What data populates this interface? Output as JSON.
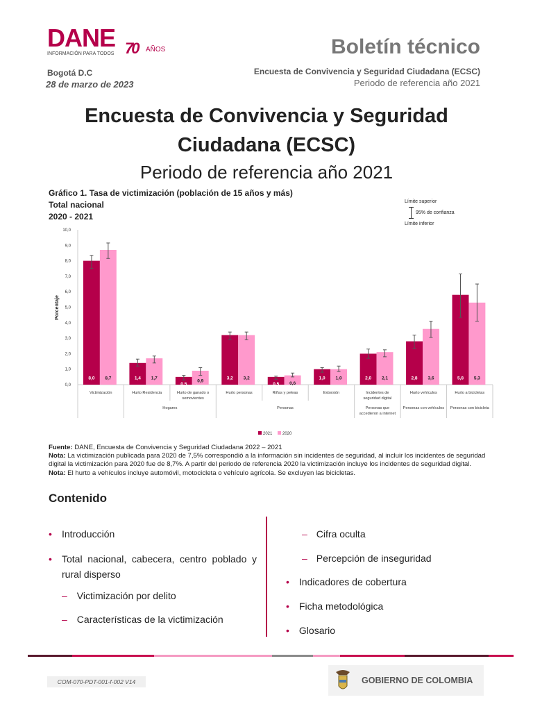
{
  "header": {
    "logo_text": "DANE",
    "logo_tagline": "INFORMACIÓN PARA TODOS",
    "logo_anniversary": "70",
    "logo_anos": "AÑOS",
    "city": "Bogotá D.C",
    "date": "28 de marzo de 2023",
    "doc_type": "Boletín técnico",
    "survey": "Encuesta de Convivencia y Seguridad Ciudadana (ECSC)",
    "period": "Periodo de referencia año 2021"
  },
  "title_line1": "Encuesta de Convivencia y Seguridad",
  "title_line2": "Ciudadana (ECSC)",
  "subtitle": "Periodo de referencia año 2021",
  "chart_heading": [
    "Gráfico 1. Tasa de victimización (población de 15 años y más)",
    "Total nacional",
    "2020 - 2021"
  ],
  "ci_legend": {
    "upper": "Límite superior",
    "label": "95% de confianza",
    "lower": "Límite inferior"
  },
  "chart_data": {
    "type": "bar",
    "ylabel": "Porcentaje",
    "ylim": [
      0,
      10
    ],
    "yticks": [
      "0,0",
      "1,0",
      "2,0",
      "3,0",
      "4,0",
      "5,0",
      "6,0",
      "7,0",
      "8,0",
      "9,0",
      "10,0"
    ],
    "categories": [
      "Victimización",
      "Hurto Residencia",
      "Hurto de ganado o semovientes",
      "Hurto personas",
      "Riñas y peleas",
      "Extorsión",
      "Incidentes de seguridad digital",
      "Hurto vehículos",
      "Hurto a bicicletas"
    ],
    "groups": [
      {
        "label": "",
        "span": 1
      },
      {
        "label": "Hogares",
        "span": 2
      },
      {
        "label": "Personas",
        "span": 3
      },
      {
        "label": "Personas que accedieron a internet",
        "span": 1
      },
      {
        "label": "Personas con vehículos",
        "span": 1
      },
      {
        "label": "Personas con bicicleta",
        "span": 1
      }
    ],
    "series": [
      {
        "name": "2021",
        "color": "#b5004a",
        "values": [
          8.0,
          1.4,
          0.5,
          3.2,
          0.5,
          1.0,
          2.0,
          2.8,
          5.8
        ],
        "labels": [
          "8,0",
          "1,4",
          "0,5",
          "3,2",
          "0,5",
          "1,0",
          "2,0",
          "2,8",
          "5,8"
        ],
        "ci": [
          [
            7.5,
            8.35
          ],
          [
            1.2,
            1.65
          ],
          [
            0.3,
            0.6
          ],
          [
            2.9,
            3.4
          ],
          [
            0.35,
            0.55
          ],
          [
            0.8,
            1.1
          ],
          [
            1.7,
            2.3
          ],
          [
            2.35,
            3.2
          ],
          [
            4.35,
            7.15
          ]
        ]
      },
      {
        "name": "2020",
        "color": "#ff99cc",
        "values": [
          8.7,
          1.7,
          0.9,
          3.2,
          0.6,
          1.0,
          2.1,
          3.6,
          5.3
        ],
        "labels": [
          "8,7",
          "1,7",
          "0,9",
          "3,2",
          "0,6",
          "1,0",
          "2,1",
          "3,6",
          "5,3"
        ],
        "ci": [
          [
            8.15,
            9.15
          ],
          [
            1.4,
            1.85
          ],
          [
            0.6,
            1.1
          ],
          [
            2.9,
            3.4
          ],
          [
            0.5,
            0.75
          ],
          [
            0.85,
            1.2
          ],
          [
            1.8,
            2.25
          ],
          [
            3.05,
            4.1
          ],
          [
            4.1,
            6.5
          ]
        ]
      }
    ],
    "legend": "bottom",
    "grid": false
  },
  "notes": {
    "source_label": "Fuente:",
    "source": " DANE, Encuesta de Convivencia y Seguridad Ciudadana 2022 – 2021",
    "note1_label": "Nota:",
    "note1": " La victimización publicada para 2020 de 7,5% correspondió a la información sin incidentes de seguridad, al incluir los incidentes de seguridad digital la victimización para 2020 fue de 8,7%. A partir del periodo de referencia 2020 la victimización incluye los incidentes de seguridad digital.",
    "note2_label": "Nota:",
    "note2": " El hurto a vehículos incluye automóvil, motocicleta o vehículo agrícola. Se excluyen las bicicletas."
  },
  "contents": {
    "heading": "Contenido",
    "left": [
      "Introducción",
      "Total nacional, cabecera, centro poblado y rural disperso",
      "Victimización por delito",
      "Características de la victimización"
    ],
    "right": [
      "Cifra oculta",
      "Percepción de inseguridad",
      "Indicadores de cobertura",
      "Ficha metodológica",
      "Glosario"
    ]
  },
  "footer": {
    "code": "COM-070-PDT-001-f-002 V14",
    "gov": "GOBIERNO DE COLOMBIA",
    "stripe_colors": [
      "#5a1a2e",
      "#c8104f",
      "#f59ac2",
      "#8a8a8a",
      "#f59ac2",
      "#c8104f",
      "#5a1a2e",
      "#c8104f"
    ]
  }
}
